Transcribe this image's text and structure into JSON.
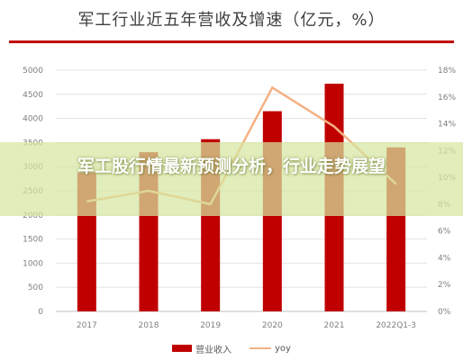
{
  "chart_data": {
    "type": "bar",
    "title": "军工行业近五年营收及增速（亿元，%）",
    "categories": [
      "2017",
      "2018",
      "2019",
      "2020",
      "2021",
      "2022Q1-3"
    ],
    "series": [
      {
        "name": "营业收入",
        "type": "bar",
        "axis": "left",
        "color": "#c00000",
        "values": [
          2880,
          3300,
          3570,
          4150,
          4720,
          3400
        ]
      },
      {
        "name": "yoy",
        "type": "line",
        "axis": "right",
        "color": "#f4b183",
        "values": [
          8.2,
          9.0,
          8.0,
          16.7,
          13.8,
          9.5
        ]
      }
    ],
    "y_left": {
      "min": 0,
      "max": 5000,
      "step": 500,
      "ticks": [
        "0",
        "500",
        "1000",
        "1500",
        "2000",
        "2500",
        "3000",
        "3500",
        "4000",
        "4500",
        "5000"
      ]
    },
    "y_right": {
      "min": 0,
      "max": 18,
      "step": 2,
      "ticks": [
        "0%",
        "2%",
        "4%",
        "6%",
        "8%",
        "10%",
        "12%",
        "14%",
        "16%",
        "18%"
      ]
    },
    "grid": true,
    "legend_position": "bottom"
  },
  "overlay": {
    "text": "军工股行情最新预测分析，行业走势展望"
  }
}
